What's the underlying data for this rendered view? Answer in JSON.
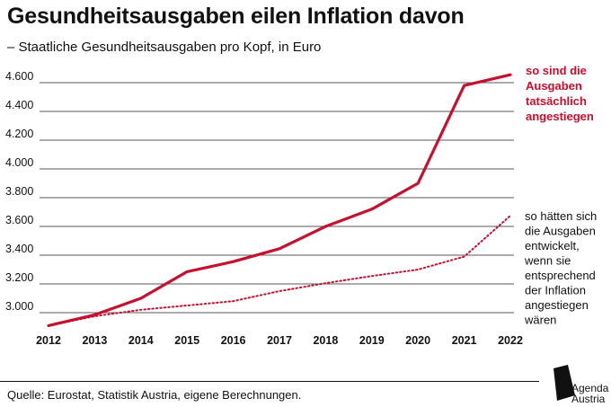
{
  "title": "Gesundheitsausgaben eilen Inflation davon",
  "subtitle": "– Staatliche Gesundheitsausgaben pro Kopf, in Euro",
  "source": "Quelle: Eurostat, Statistik Austria, eigene Berechnungen.",
  "brand": {
    "line1": "Agenda",
    "line2": "Austria"
  },
  "colors": {
    "actual": "#c8102e",
    "inflation": "#c8102e",
    "grid": "#222222"
  },
  "chart_data": {
    "type": "line",
    "x": [
      2012,
      2013,
      2014,
      2015,
      2016,
      2017,
      2018,
      2019,
      2020,
      2021,
      2022
    ],
    "yticks": [
      "3.000",
      "3.200",
      "3.400",
      "3.600",
      "3.800",
      "4.000",
      "4.200",
      "4.400",
      "4.600"
    ],
    "ytick_values": [
      3000,
      3200,
      3400,
      3600,
      3800,
      4000,
      4200,
      4400,
      4600
    ],
    "ylim": [
      2900,
      4700
    ],
    "series": [
      {
        "key": "actual",
        "style": "solid",
        "values": [
          2910,
          2985,
          3100,
          3285,
          3355,
          3445,
          3600,
          3720,
          3900,
          4580,
          4655
        ]
      },
      {
        "key": "inflation",
        "style": "dotted",
        "values": [
          2910,
          2975,
          3020,
          3050,
          3080,
          3150,
          3205,
          3255,
          3300,
          3390,
          3675
        ]
      }
    ],
    "annotations": {
      "actual": [
        "so sind die",
        "Ausgaben",
        "tatsächlich",
        "angestiegen"
      ],
      "inflation": [
        "so hätten sich",
        "die Ausgaben",
        "entwickelt,",
        "wenn sie",
        "entsprechend",
        "der Inflation",
        "angestiegen",
        "wären"
      ]
    }
  }
}
